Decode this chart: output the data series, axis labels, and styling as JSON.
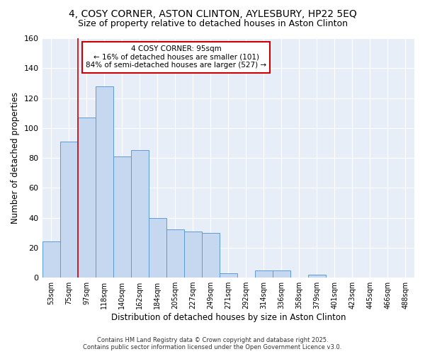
{
  "title1": "4, COSY CORNER, ASTON CLINTON, AYLESBURY, HP22 5EQ",
  "title2": "Size of property relative to detached houses in Aston Clinton",
  "xlabel": "Distribution of detached houses by size in Aston Clinton",
  "ylabel": "Number of detached properties",
  "categories": [
    "53sqm",
    "75sqm",
    "97sqm",
    "118sqm",
    "140sqm",
    "162sqm",
    "184sqm",
    "205sqm",
    "227sqm",
    "249sqm",
    "271sqm",
    "292sqm",
    "314sqm",
    "336sqm",
    "358sqm",
    "379sqm",
    "401sqm",
    "423sqm",
    "445sqm",
    "466sqm",
    "488sqm"
  ],
  "values": [
    24,
    91,
    107,
    128,
    81,
    85,
    40,
    32,
    31,
    30,
    3,
    0,
    5,
    5,
    0,
    2,
    0,
    0,
    0,
    0,
    0
  ],
  "bar_color": "#c5d8f0",
  "bar_edge_color": "#5b9bd5",
  "plot_bg_color": "#e8eef8",
  "grid_color": "#ffffff",
  "fig_bg_color": "#ffffff",
  "red_line_index": 2,
  "annotation_text": "4 COSY CORNER: 95sqm\n← 16% of detached houses are smaller (101)\n84% of semi-detached houses are larger (527) →",
  "annotation_box_facecolor": "#ffffff",
  "annotation_box_edgecolor": "#cc0000",
  "footer_text": "Contains HM Land Registry data © Crown copyright and database right 2025.\nContains public sector information licensed under the Open Government Licence v3.0.",
  "ylim": [
    0,
    160
  ],
  "yticks": [
    0,
    20,
    40,
    60,
    80,
    100,
    120,
    140,
    160
  ]
}
